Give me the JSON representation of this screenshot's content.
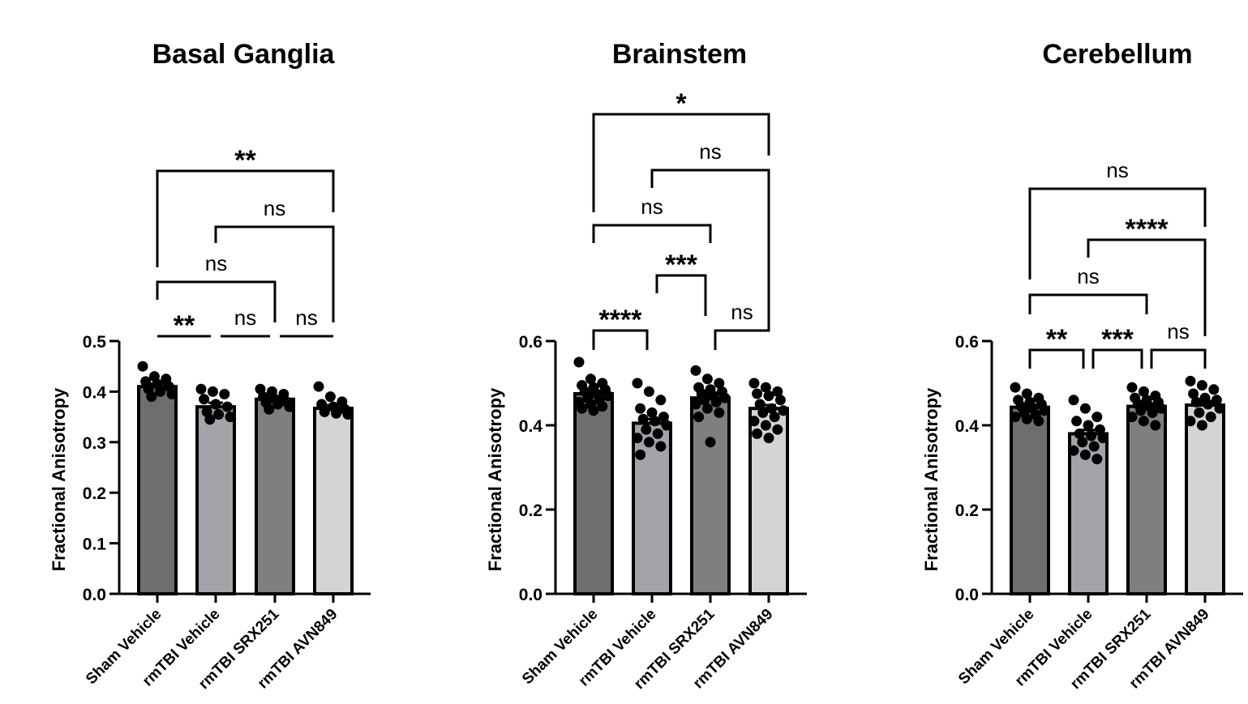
{
  "chart_data": [
    {
      "type": "bar",
      "title": "Basal Ganglia",
      "ylabel": "Fractional Anisotropy",
      "xlabel": "",
      "categories": [
        "Sham Vehicle",
        "rmTBI Vehicle",
        "rmTBI SRX251",
        "rmTBI AVN849"
      ],
      "values": [
        0.41,
        0.37,
        0.385,
        0.367
      ],
      "sem": [
        0.006,
        0.008,
        0.005,
        0.006
      ],
      "points": [
        [
          0.45,
          0.43,
          0.425,
          0.42,
          0.415,
          0.41,
          0.405,
          0.4,
          0.395,
          0.39
        ],
        [
          0.405,
          0.4,
          0.395,
          0.385,
          0.375,
          0.37,
          0.36,
          0.355,
          0.35,
          0.345
        ],
        [
          0.405,
          0.4,
          0.395,
          0.39,
          0.385,
          0.38,
          0.378,
          0.375,
          0.37,
          0.365
        ],
        [
          0.41,
          0.39,
          0.38,
          0.375,
          0.37,
          0.365,
          0.36,
          0.357,
          0.355
        ]
      ],
      "bar_colors": [
        "#6e6e6e",
        "#a3a3a8",
        "#7f7f7f",
        "#d4d4d4"
      ],
      "ylim": [
        0,
        0.5
      ],
      "yticks": [
        "0.0",
        "0.1",
        "0.2",
        "0.3",
        "0.4",
        "0.5"
      ],
      "comparisons": [
        {
          "from": 0,
          "to": 1,
          "label": "**"
        },
        {
          "from": 1,
          "to": 2,
          "label": "ns"
        },
        {
          "from": 2,
          "to": 3,
          "label": "ns"
        },
        {
          "from": 0,
          "to": 2,
          "label": "ns"
        },
        {
          "from": 1,
          "to": 3,
          "label": "ns"
        },
        {
          "from": 0,
          "to": 3,
          "label": "**"
        }
      ]
    },
    {
      "type": "bar",
      "title": "Brainstem",
      "ylabel": "Fractional Anisotropy",
      "xlabel": "",
      "categories": [
        "Sham Vehicle",
        "rmTBI Vehicle",
        "rmTBI SRX251",
        "rmTBI AVN849"
      ],
      "values": [
        0.475,
        0.405,
        0.465,
        0.44
      ],
      "sem": [
        0.006,
        0.01,
        0.008,
        0.008
      ],
      "points": [
        [
          0.55,
          0.51,
          0.5,
          0.495,
          0.49,
          0.485,
          0.48,
          0.475,
          0.47,
          0.465,
          0.46,
          0.455,
          0.45,
          0.445,
          0.44,
          0.435
        ],
        [
          0.5,
          0.48,
          0.46,
          0.44,
          0.43,
          0.42,
          0.415,
          0.41,
          0.4,
          0.39,
          0.38,
          0.37,
          0.36,
          0.35,
          0.33
        ],
        [
          0.53,
          0.51,
          0.5,
          0.49,
          0.485,
          0.48,
          0.475,
          0.47,
          0.465,
          0.46,
          0.455,
          0.45,
          0.44,
          0.43,
          0.42,
          0.36
        ],
        [
          0.5,
          0.49,
          0.48,
          0.475,
          0.47,
          0.46,
          0.45,
          0.44,
          0.435,
          0.43,
          0.42,
          0.41,
          0.4,
          0.39,
          0.38,
          0.37
        ]
      ],
      "bar_colors": [
        "#6e6e6e",
        "#a3a3a8",
        "#7f7f7f",
        "#d4d4d4"
      ],
      "ylim": [
        0,
        0.6
      ],
      "yticks": [
        "0.0",
        "0.2",
        "0.4",
        "0.6"
      ],
      "comparisons": [
        {
          "from": 0,
          "to": 1,
          "label": "****"
        },
        {
          "from": 2,
          "to": 3,
          "label": "ns"
        },
        {
          "from": 1,
          "to": 2,
          "label": "***"
        },
        {
          "from": 0,
          "to": 2,
          "label": "ns"
        },
        {
          "from": 1,
          "to": 3,
          "label": "ns"
        },
        {
          "from": 0,
          "to": 3,
          "label": "*"
        }
      ]
    },
    {
      "type": "bar",
      "title": "Cerebellum",
      "ylabel": "Fractional Anisotropy",
      "xlabel": "",
      "categories": [
        "Sham Vehicle",
        "rmTBI Vehicle",
        "rmTBI SRX251",
        "rmTBI AVN849"
      ],
      "values": [
        0.443,
        0.38,
        0.445,
        0.448
      ],
      "sem": [
        0.006,
        0.009,
        0.006,
        0.006
      ],
      "points": [
        [
          0.49,
          0.475,
          0.465,
          0.46,
          0.455,
          0.45,
          0.445,
          0.44,
          0.435,
          0.43,
          0.425,
          0.42,
          0.415,
          0.41
        ],
        [
          0.46,
          0.44,
          0.42,
          0.41,
          0.4,
          0.39,
          0.38,
          0.375,
          0.37,
          0.36,
          0.35,
          0.34,
          0.33,
          0.32
        ],
        [
          0.49,
          0.48,
          0.47,
          0.465,
          0.46,
          0.455,
          0.45,
          0.445,
          0.44,
          0.435,
          0.43,
          0.42,
          0.41,
          0.4
        ],
        [
          0.505,
          0.495,
          0.485,
          0.475,
          0.465,
          0.46,
          0.455,
          0.45,
          0.44,
          0.43,
          0.42,
          0.41,
          0.4
        ]
      ],
      "bar_colors": [
        "#6e6e6e",
        "#a3a3a8",
        "#7f7f7f",
        "#d4d4d4"
      ],
      "ylim": [
        0,
        0.6
      ],
      "yticks": [
        "0.0",
        "0.2",
        "0.4",
        "0.6"
      ],
      "comparisons": [
        {
          "from": 0,
          "to": 1,
          "label": "**"
        },
        {
          "from": 1,
          "to": 2,
          "label": "***"
        },
        {
          "from": 2,
          "to": 3,
          "label": "ns"
        },
        {
          "from": 0,
          "to": 2,
          "label": "ns"
        },
        {
          "from": 1,
          "to": 3,
          "label": "****"
        },
        {
          "from": 0,
          "to": 3,
          "label": "ns"
        }
      ]
    }
  ]
}
